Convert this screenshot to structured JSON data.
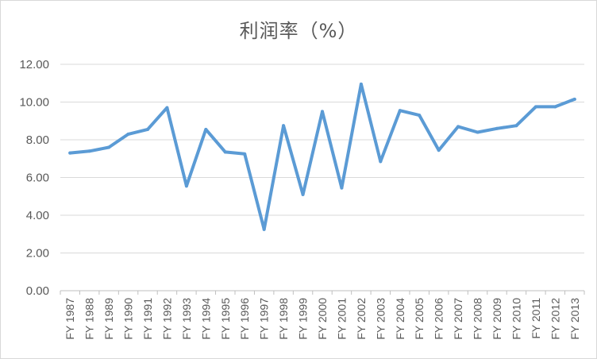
{
  "chart_data": {
    "type": "line",
    "title": "利润率（%）",
    "xlabel": "",
    "ylabel": "",
    "ylim": [
      0,
      12
    ],
    "yticks": [
      "0.00",
      "2.00",
      "4.00",
      "6.00",
      "8.00",
      "10.00",
      "12.00"
    ],
    "grid": true,
    "line_color": "#5b9bd5",
    "categories": [
      "FY 1987",
      "FY 1988",
      "FY 1989",
      "FY 1990",
      "FY 1991",
      "FY 1992",
      "FY 1993",
      "FY 1994",
      "FY 1995",
      "FY 1996",
      "FY 1997",
      "FY 1998",
      "FY 1999",
      "FY 2000",
      "FY 2001",
      "FY 2002",
      "FY 2003",
      "FY 2004",
      "FY 2005",
      "FY 2006",
      "FY 2007",
      "FY 2008",
      "FY 2009",
      "FY 2010",
      "FY 2011",
      "FY 2012",
      "FY 2013"
    ],
    "values": [
      7.3,
      7.4,
      7.6,
      8.3,
      8.55,
      9.7,
      5.55,
      8.55,
      7.35,
      7.25,
      3.25,
      8.75,
      5.1,
      9.5,
      5.45,
      10.95,
      6.85,
      9.55,
      9.3,
      7.45,
      8.7,
      8.4,
      8.6,
      8.75,
      9.75,
      9.75,
      10.15
    ]
  }
}
